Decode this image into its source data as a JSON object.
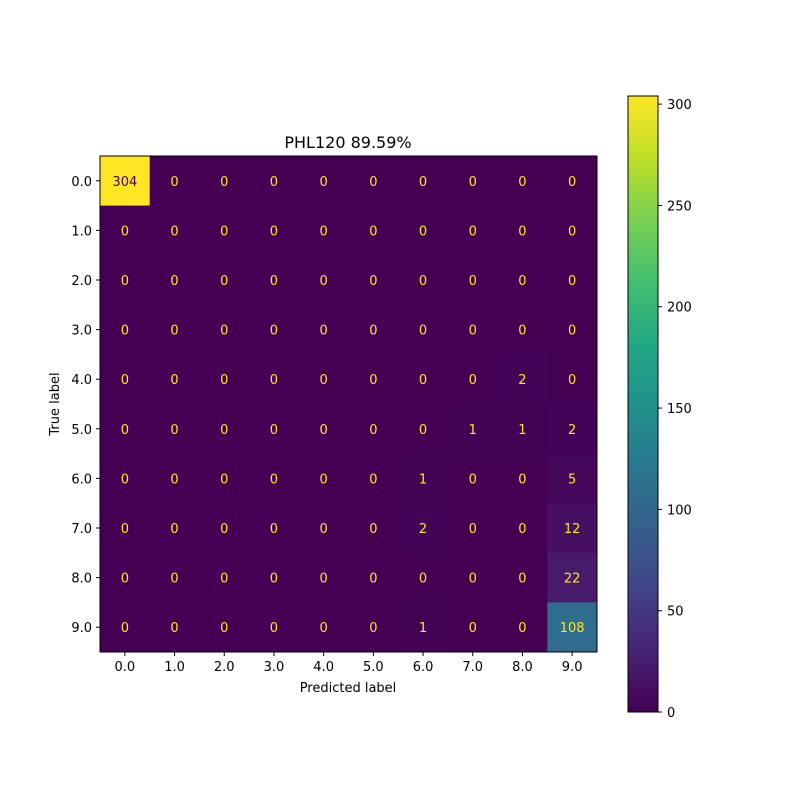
{
  "chart_data": {
    "type": "heatmap",
    "title": "PHL120 89.59%",
    "xlabel": "Predicted label",
    "ylabel": "True label",
    "x_categories": [
      "0.0",
      "1.0",
      "2.0",
      "3.0",
      "4.0",
      "5.0",
      "6.0",
      "7.0",
      "8.0",
      "9.0"
    ],
    "y_categories": [
      "0.0",
      "1.0",
      "2.0",
      "3.0",
      "4.0",
      "5.0",
      "6.0",
      "7.0",
      "8.0",
      "9.0"
    ],
    "matrix": [
      [
        304,
        0,
        0,
        0,
        0,
        0,
        0,
        0,
        0,
        0
      ],
      [
        0,
        0,
        0,
        0,
        0,
        0,
        0,
        0,
        0,
        0
      ],
      [
        0,
        0,
        0,
        0,
        0,
        0,
        0,
        0,
        0,
        0
      ],
      [
        0,
        0,
        0,
        0,
        0,
        0,
        0,
        0,
        0,
        0
      ],
      [
        0,
        0,
        0,
        0,
        0,
        0,
        0,
        0,
        2,
        0
      ],
      [
        0,
        0,
        0,
        0,
        0,
        0,
        0,
        1,
        1,
        2
      ],
      [
        0,
        0,
        0,
        0,
        0,
        0,
        1,
        0,
        0,
        5
      ],
      [
        0,
        0,
        0,
        0,
        0,
        0,
        2,
        0,
        0,
        12
      ],
      [
        0,
        0,
        0,
        0,
        0,
        0,
        0,
        0,
        0,
        22
      ],
      [
        0,
        0,
        0,
        0,
        0,
        0,
        1,
        0,
        0,
        108
      ]
    ],
    "colormap": "viridis",
    "vmin": 0,
    "vmax": 304,
    "colorbar_ticks": [
      0,
      50,
      100,
      150,
      200,
      250,
      300
    ],
    "grid": false
  }
}
